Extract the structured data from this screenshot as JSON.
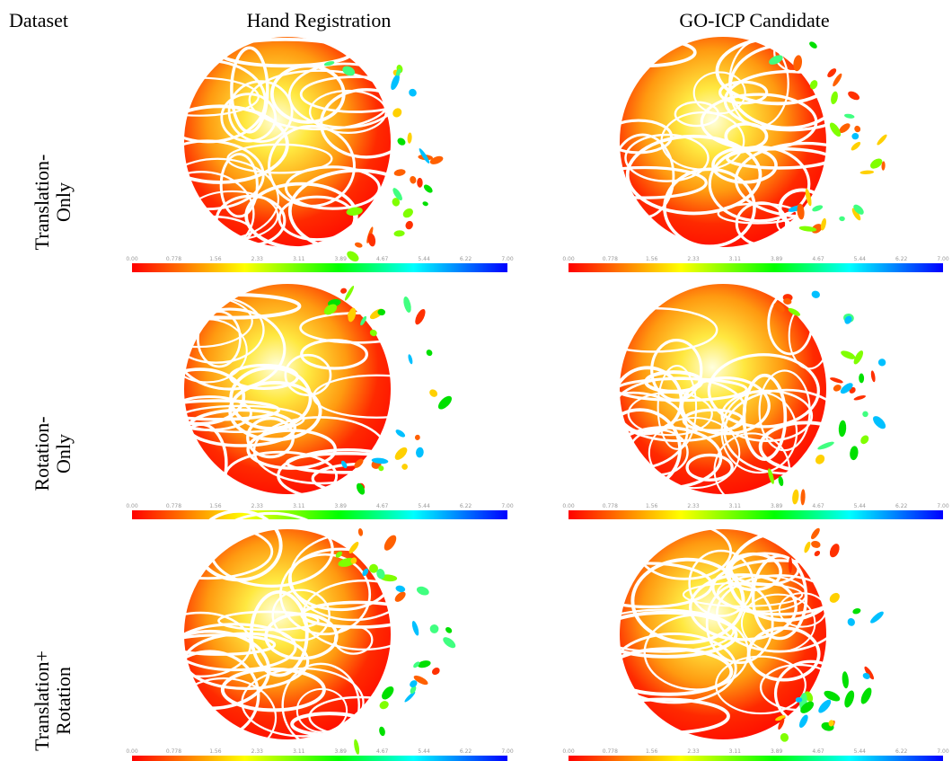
{
  "header": {
    "columns": [
      "Dataset",
      "Hand Registration",
      "GO-ICP Candidate"
    ]
  },
  "rows": [
    {
      "label": [
        "Translation-",
        "Only"
      ]
    },
    {
      "label": [
        "Rotation-",
        "Only"
      ]
    },
    {
      "label": [
        "Translation+",
        "Rotation"
      ]
    }
  ],
  "colorbar": {
    "ticks": [
      "0.00",
      "0.778",
      "1.56",
      "2.33",
      "3.11",
      "3.89",
      "4.67",
      "5.44",
      "6.22",
      "7.00"
    ]
  }
}
